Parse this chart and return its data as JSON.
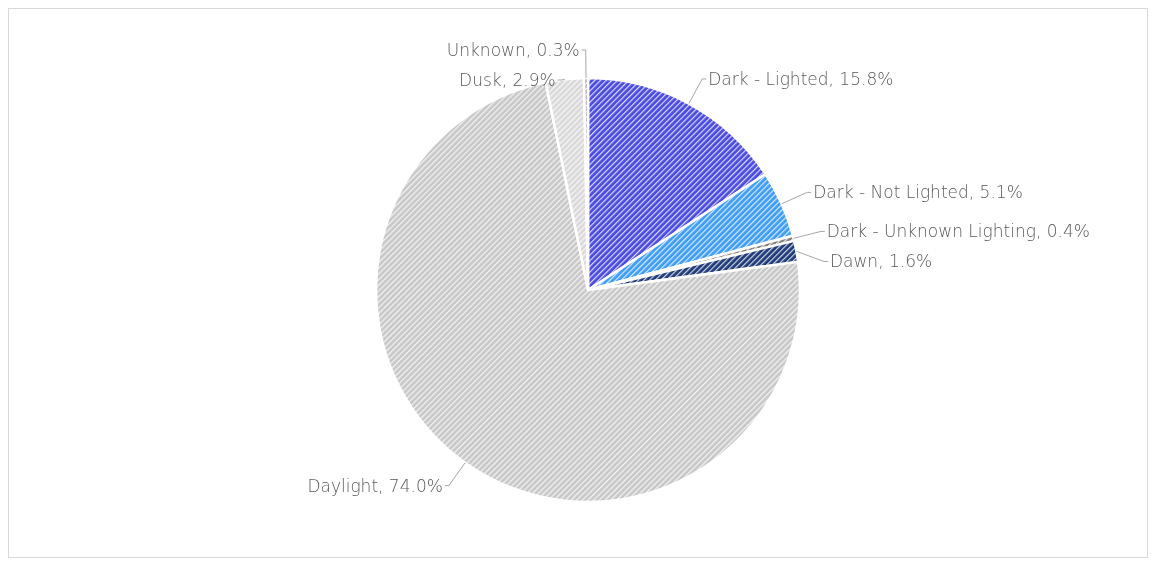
{
  "chart_data": {
    "type": "pie",
    "categories": [
      "Dark - Lighted",
      "Dark - Not Lighted",
      "Dark - Unknown Lighting",
      "Dawn",
      "Daylight",
      "Dusk",
      "Unknown"
    ],
    "values": [
      15.8,
      5.1,
      0.4,
      1.6,
      74.0,
      2.9,
      0.3
    ],
    "value_labels": [
      "15.8%",
      "5.1%",
      "0.4%",
      "1.6%",
      "74.0%",
      "2.9%",
      "0.3%"
    ],
    "colors": [
      "#4a4ae0",
      "#3d9cf5",
      "#7f7f7f",
      "#1f3a78",
      "#c8c8c8",
      "#d9d9d9",
      "#a6a6a6"
    ]
  }
}
